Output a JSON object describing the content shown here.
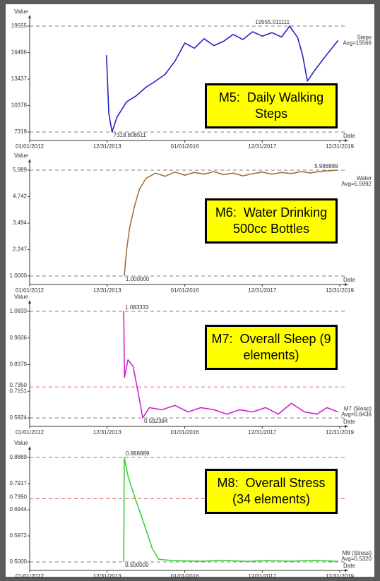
{
  "chart_data": [
    {
      "type": "line",
      "title": "M5:  Daily Walking Steps",
      "y_label": "Value",
      "x_label": "Date",
      "xlim": [
        "2012-01-01",
        "2019-12-31"
      ],
      "xticks": [
        {
          "value": "2012-01-01",
          "label": "01/01/2012"
        },
        {
          "value": "2013-12-31",
          "label": "12/31/2013"
        },
        {
          "value": "2016-01-01",
          "label": "01/01/2016"
        },
        {
          "value": "2017-12-31",
          "label": "12/31/2017"
        },
        {
          "value": "2019-12-31",
          "label": "12/31/2019"
        }
      ],
      "ylim": [
        7319,
        19555
      ],
      "yticks": [
        7319,
        10378,
        13437,
        16496,
        19555
      ],
      "max_label": "19555.011111",
      "min_label": "7318.808511",
      "avg_label": "Avg=15566",
      "x": [
        "2013-12-25",
        "2014-01-15",
        "2014-02-15",
        "2014-04-01",
        "2014-07-01",
        "2014-10-01",
        "2015-01-01",
        "2015-04-01",
        "2015-07-01",
        "2015-10-01",
        "2016-01-01",
        "2016-04-01",
        "2016-07-01",
        "2016-10-01",
        "2017-01-01",
        "2017-04-01",
        "2017-07-01",
        "2017-10-01",
        "2018-01-01",
        "2018-04-01",
        "2018-07-01",
        "2018-09-15",
        "2018-12-01",
        "2019-01-15",
        "2019-03-01",
        "2019-05-01",
        "2019-08-01",
        "2019-12-15"
      ],
      "series": [
        {
          "name": "Steps",
          "color": "#2323c4",
          "values": [
            16200,
            9500,
            7318.808511,
            9000,
            10800,
            11500,
            12500,
            13200,
            14000,
            15500,
            17600,
            17000,
            18100,
            17300,
            17800,
            18600,
            18000,
            18900,
            18400,
            18800,
            18300,
            19555.011111,
            18200,
            16200,
            13200,
            14300,
            15800,
            17900
          ]
        }
      ]
    },
    {
      "type": "line",
      "title": "M6:  Water Drinking 500cc Bottles",
      "y_label": "Value",
      "x_label": "Date",
      "xlim": [
        "2012-01-01",
        "2019-12-31"
      ],
      "xticks": [
        {
          "value": "2012-01-01",
          "label": "01/01/2012"
        },
        {
          "value": "2013-12-31",
          "label": "12/31/2013"
        },
        {
          "value": "2016-01-01",
          "label": "01/01/2016"
        },
        {
          "value": "2017-12-31",
          "label": "12/31/2017"
        },
        {
          "value": "2019-12-31",
          "label": "12/31/2019"
        }
      ],
      "ylim": [
        1,
        5.989
      ],
      "yticks": [
        {
          "value": 1,
          "label": "1.0000"
        },
        2.247,
        3.494,
        4.742,
        5.989
      ],
      "max_label": "5.988889",
      "min_label": "1.000000",
      "avg_label": "Avg=5.5992",
      "x": [
        "2014-06-10",
        "2014-07-01",
        "2014-08-01",
        "2014-09-15",
        "2014-11-01",
        "2015-01-01",
        "2015-04-01",
        "2015-07-01",
        "2015-10-01",
        "2016-01-01",
        "2016-04-01",
        "2016-07-01",
        "2016-10-01",
        "2017-01-01",
        "2017-04-01",
        "2017-07-01",
        "2017-10-01",
        "2018-01-01",
        "2018-04-01",
        "2018-07-01",
        "2018-10-01",
        "2019-01-01",
        "2019-04-01",
        "2019-07-01",
        "2019-12-15"
      ],
      "series": [
        {
          "name": "Water",
          "color": "#a0703c",
          "values": [
            1,
            2.2,
            3.3,
            4.3,
            5.1,
            5.6,
            5.85,
            5.7,
            5.9,
            5.75,
            5.88,
            5.8,
            5.92,
            5.78,
            5.85,
            5.72,
            5.82,
            5.9,
            5.8,
            5.88,
            5.83,
            5.92,
            5.86,
            5.93,
            5.988889
          ]
        }
      ]
    },
    {
      "type": "line",
      "title": "M7:  Overall Sleep (9 elements)",
      "y_label": "Value",
      "x_label": "Date",
      "xlim": [
        "2012-01-01",
        "2019-12-31"
      ],
      "xticks": [
        {
          "value": "2012-01-01",
          "label": "01/01/2012"
        },
        {
          "value": "2013-12-31",
          "label": "12/31/2013"
        },
        {
          "value": "2016-01-01",
          "label": "01/01/2016"
        },
        {
          "value": "2017-12-31",
          "label": "12/31/2017"
        },
        {
          "value": "2019-12-31",
          "label": "12/31/2019"
        }
      ],
      "ylim": [
        0.5924,
        1.0833
      ],
      "yticks": [
        0.5924,
        0.7151,
        0.8379,
        0.9606,
        1.0833
      ],
      "refline": {
        "value": 0.735,
        "label": "0.7350",
        "color": "#e04040"
      },
      "max_label": "1.083333",
      "min_label": "0.592384",
      "avg_label": "Avg=0.6436",
      "x": [
        "2014-06-05",
        "2014-06-12",
        "2014-07-15",
        "2014-09-01",
        "2014-10-15",
        "2014-12-01",
        "2015-02-01",
        "2015-06-01",
        "2015-10-01",
        "2016-02-01",
        "2016-06-01",
        "2016-10-01",
        "2017-02-01",
        "2017-06-01",
        "2017-10-01",
        "2018-02-01",
        "2018-06-01",
        "2018-10-01",
        "2019-02-01",
        "2019-06-01",
        "2019-09-01",
        "2019-12-15"
      ],
      "series": [
        {
          "name": "M7 (Sleep)",
          "color": "#d020d0",
          "values": [
            1.083333,
            0.78,
            0.86,
            0.83,
            0.72,
            0.592384,
            0.64,
            0.63,
            0.65,
            0.62,
            0.64,
            0.63,
            0.61,
            0.63,
            0.62,
            0.64,
            0.61,
            0.66,
            0.62,
            0.61,
            0.64,
            0.62
          ]
        }
      ]
    },
    {
      "type": "line",
      "title": "M8:  Overall Stress (34 elements)",
      "y_label": "Value",
      "x_label": "Date",
      "xlim": [
        "2012-01-01",
        "2019-12-31"
      ],
      "xticks": [
        {
          "value": "2012-01-01",
          "label": "01/01/2012"
        },
        {
          "value": "2013-12-31",
          "label": "12/31/2013"
        },
        {
          "value": "2016-01-01",
          "label": "01/01/2016"
        },
        {
          "value": "2017-12-31",
          "label": "12/31/2017"
        },
        {
          "value": "2019-12-31",
          "label": "12/31/2019"
        }
      ],
      "ylim": [
        0.5,
        0.8889
      ],
      "yticks": [
        {
          "value": 0.5,
          "label": "0.5000"
        },
        0.5972,
        0.6944,
        0.7917,
        0.8889
      ],
      "refline": {
        "value": 0.735,
        "label": "0.7350",
        "color": "#e04040"
      },
      "max_label": "0.888889",
      "min_label": "0.500000",
      "avg_label": "Avg=0.5320",
      "x": [
        "2014-06-05",
        "2014-06-10",
        "2014-07-15",
        "2014-09-01",
        "2014-11-01",
        "2015-01-01",
        "2015-03-01",
        "2015-05-01",
        "2015-09-01",
        "2016-06-01",
        "2017-01-01",
        "2017-08-01",
        "2018-03-01",
        "2018-10-01",
        "2019-05-01",
        "2019-12-15"
      ],
      "series": [
        {
          "name": "M8 (Stress)",
          "color": "#3cd03c",
          "values": [
            0.5,
            0.888889,
            0.82,
            0.76,
            0.69,
            0.62,
            0.55,
            0.51,
            0.505,
            0.503,
            0.506,
            0.502,
            0.505,
            0.503,
            0.506,
            0.502
          ]
        }
      ]
    }
  ]
}
